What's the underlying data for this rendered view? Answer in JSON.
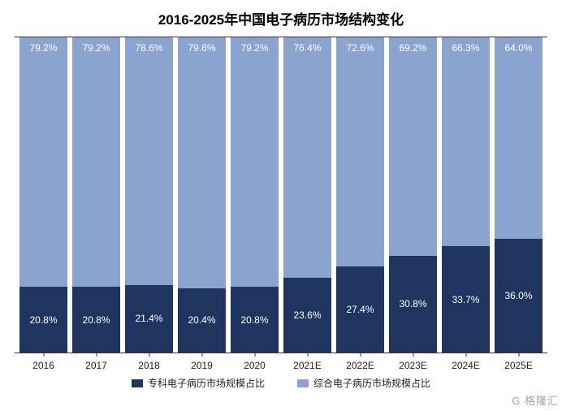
{
  "chart": {
    "type": "stacked-bar-100",
    "title": "2016-2025年中国电子病历市场结构变化",
    "title_fontsize": 17,
    "title_fontweight": "bold",
    "background_color": "#ffffff",
    "axis_line_color": "#333333",
    "value_label_fontsize": 12,
    "value_label_color": "#ffffff",
    "category_label_fontsize": 12,
    "category_label_color": "#222222",
    "legend_fontsize": 12,
    "bar_width_ratio": 0.9,
    "categories": [
      "2016",
      "2017",
      "2018",
      "2019",
      "2020",
      "2021E",
      "2022E",
      "2023E",
      "2024E",
      "2025E"
    ],
    "series": [
      {
        "name": "综合电子病历市场规模占比",
        "color": "#8aa4cf",
        "values": [
          79.2,
          79.2,
          78.6,
          79.6,
          79.2,
          76.4,
          72.6,
          69.2,
          66.3,
          64.0
        ],
        "labels": [
          "79.2%",
          "79.2%",
          "78.6%",
          "79.6%",
          "79.2%",
          "76.4%",
          "72.6%",
          "69.2%",
          "66.3%",
          "64.0%"
        ]
      },
      {
        "name": "专科电子病历市场规模占比",
        "color": "#1f355f",
        "values": [
          20.8,
          20.8,
          21.4,
          20.4,
          20.8,
          23.6,
          27.4,
          30.8,
          33.7,
          36.0
        ],
        "labels": [
          "20.8%",
          "20.8%",
          "21.4%",
          "20.4%",
          "20.8%",
          "23.6%",
          "27.4%",
          "30.8%",
          "33.7%",
          "36.0%"
        ]
      }
    ],
    "legend_order": [
      1,
      0
    ]
  },
  "watermark": "G 格隆汇"
}
